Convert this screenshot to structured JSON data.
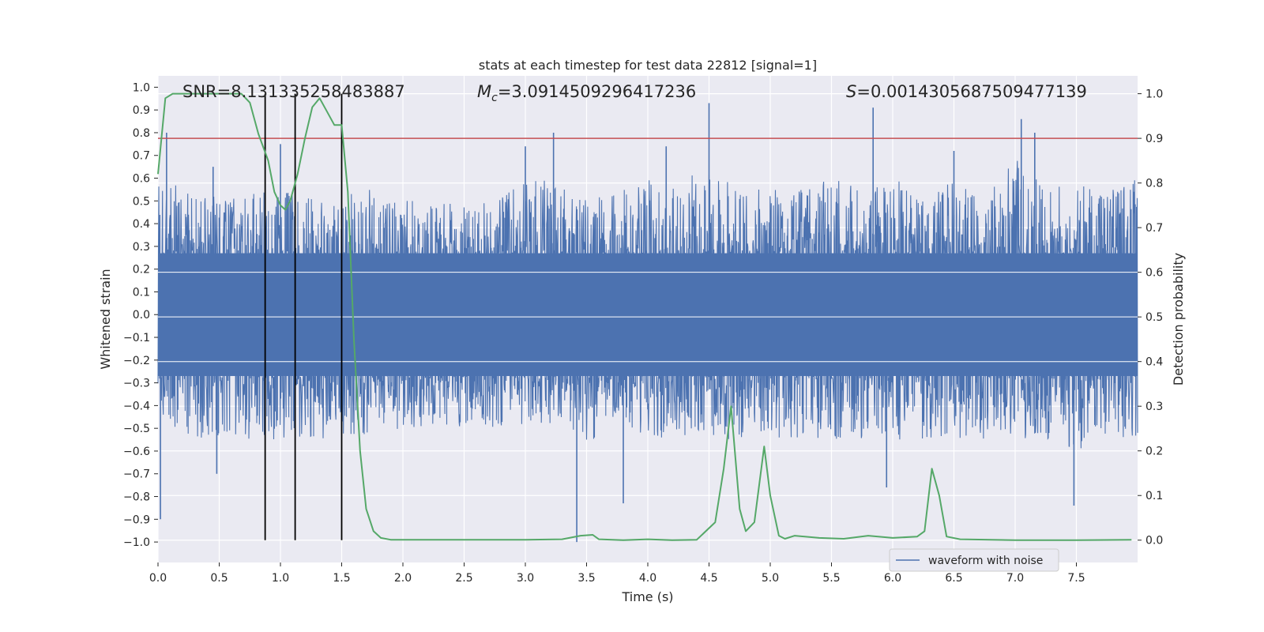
{
  "chart_data": {
    "type": "line",
    "title": "stats at each timestep for test data 22812 [signal=1]",
    "xlabel": "Time (s)",
    "ylabel": "Whitened strain",
    "y2label": "Detection probability",
    "xlim": [
      0.0,
      8.0
    ],
    "ylim": [
      -1.09,
      1.05
    ],
    "y2lim": [
      -0.05,
      1.04
    ],
    "x_ticks": [
      "0.0",
      "0.5",
      "1.0",
      "1.5",
      "2.0",
      "2.5",
      "3.0",
      "3.5",
      "4.0",
      "4.5",
      "5.0",
      "5.5",
      "6.0",
      "6.5",
      "7.0",
      "7.5"
    ],
    "y_ticks": [
      "1.0",
      "0.9",
      "0.8",
      "0.7",
      "0.6",
      "0.5",
      "0.4",
      "0.3",
      "0.2",
      "0.1",
      "0.0",
      "-0.1",
      "-0.2",
      "-0.3",
      "-0.4",
      "-0.5",
      "-0.6",
      "-0.7",
      "-0.8",
      "-0.9",
      "-1.0"
    ],
    "y2_ticks": [
      "1.0",
      "0.9",
      "0.8",
      "0.7",
      "0.6",
      "0.5",
      "0.4",
      "0.3",
      "0.2",
      "0.1",
      "0.0"
    ],
    "annotations": {
      "snr_label": "SNR=8.131335258483887",
      "mc_symbol": "M",
      "mc_subscript": "c",
      "mc_value": "=3.0914509296417236",
      "s_symbol": "S",
      "s_value": "=0.0014305687509477139"
    },
    "threshold": {
      "value": 0.9,
      "axis": "y2",
      "color": "#c44e52"
    },
    "event_markers_x": [
      0.875,
      1.12,
      1.5
    ],
    "legend": {
      "label": "waveform with noise",
      "placement": "lower-right"
    },
    "series": [
      {
        "name": "waveform with noise",
        "axis": "y",
        "color": "#4c72b0",
        "envelope_x": [
          0.0,
          0.25,
          0.5,
          0.75,
          1.0,
          1.25,
          1.5,
          1.75,
          2.0,
          2.25,
          2.5,
          2.75,
          3.0,
          3.25,
          3.5,
          3.75,
          4.0,
          4.25,
          4.5,
          4.75,
          5.0,
          5.25,
          5.5,
          5.75,
          6.0,
          6.25,
          6.5,
          6.75,
          7.0,
          7.25,
          7.5,
          7.75,
          8.0
        ],
        "envelope_upper": [
          0.6,
          0.55,
          0.55,
          0.55,
          0.55,
          0.55,
          0.55,
          0.55,
          0.5,
          0.5,
          0.5,
          0.5,
          0.6,
          0.6,
          0.5,
          0.55,
          0.6,
          0.55,
          0.7,
          0.55,
          0.55,
          0.55,
          0.6,
          0.55,
          0.6,
          0.55,
          0.6,
          0.55,
          0.7,
          0.55,
          0.6,
          0.55,
          0.6
        ],
        "envelope_lower": [
          -0.5,
          -0.55,
          -0.55,
          -0.55,
          -0.55,
          -0.55,
          -0.55,
          -0.55,
          -0.5,
          -0.5,
          -0.5,
          -0.5,
          -0.5,
          -0.5,
          -0.55,
          -0.55,
          -0.55,
          -0.55,
          -0.55,
          -0.55,
          -0.55,
          -0.55,
          -0.55,
          -0.55,
          -0.55,
          -0.55,
          -0.55,
          -0.55,
          -0.55,
          -0.55,
          -0.6,
          -0.55,
          -0.55
        ],
        "spikes": [
          {
            "x": 0.07,
            "y": 0.8
          },
          {
            "x": 0.45,
            "y": 0.65
          },
          {
            "x": 0.02,
            "y": -0.9
          },
          {
            "x": 0.48,
            "y": -0.7
          },
          {
            "x": 1.0,
            "y": 0.75
          },
          {
            "x": 3.0,
            "y": 0.74
          },
          {
            "x": 3.23,
            "y": 0.8
          },
          {
            "x": 3.42,
            "y": -1.0
          },
          {
            "x": 3.8,
            "y": -0.83
          },
          {
            "x": 4.5,
            "y": 0.93
          },
          {
            "x": 5.84,
            "y": 0.91
          },
          {
            "x": 5.95,
            "y": -0.76
          },
          {
            "x": 7.05,
            "y": 0.86
          },
          {
            "x": 7.16,
            "y": 0.8
          },
          {
            "x": 7.48,
            "y": -0.84
          },
          {
            "x": 4.15,
            "y": 0.74
          },
          {
            "x": 6.5,
            "y": 0.72
          }
        ]
      },
      {
        "name": "detection probability",
        "axis": "y2",
        "color": "#55a868",
        "x": [
          0.0,
          0.06,
          0.12,
          0.2,
          0.3,
          0.4,
          0.5,
          0.6,
          0.68,
          0.75,
          0.82,
          0.9,
          0.95,
          1.0,
          1.04,
          1.08,
          1.14,
          1.2,
          1.26,
          1.32,
          1.38,
          1.44,
          1.5,
          1.55,
          1.6,
          1.65,
          1.7,
          1.76,
          1.82,
          1.9,
          2.0,
          2.5,
          3.0,
          3.3,
          3.45,
          3.55,
          3.6,
          3.8,
          4.0,
          4.2,
          4.4,
          4.55,
          4.62,
          4.68,
          4.75,
          4.8,
          4.87,
          4.95,
          5.0,
          5.07,
          5.12,
          5.2,
          5.4,
          5.6,
          5.8,
          6.0,
          6.2,
          6.26,
          6.32,
          6.38,
          6.44,
          6.55,
          7.0,
          7.5,
          7.95
        ],
        "y": [
          0.82,
          0.99,
          1.0,
          1.0,
          1.0,
          1.0,
          1.0,
          1.0,
          1.0,
          0.98,
          0.91,
          0.85,
          0.78,
          0.75,
          0.74,
          0.76,
          0.82,
          0.9,
          0.97,
          0.99,
          0.96,
          0.93,
          0.93,
          0.78,
          0.45,
          0.2,
          0.07,
          0.02,
          0.005,
          0.001,
          0.001,
          0.001,
          0.001,
          0.002,
          0.01,
          0.012,
          0.002,
          0.0,
          0.002,
          0.0,
          0.001,
          0.04,
          0.16,
          0.3,
          0.07,
          0.02,
          0.04,
          0.21,
          0.1,
          0.01,
          0.003,
          0.01,
          0.005,
          0.003,
          0.01,
          0.005,
          0.008,
          0.02,
          0.16,
          0.1,
          0.008,
          0.002,
          0.0,
          0.0,
          0.001
        ]
      }
    ]
  }
}
